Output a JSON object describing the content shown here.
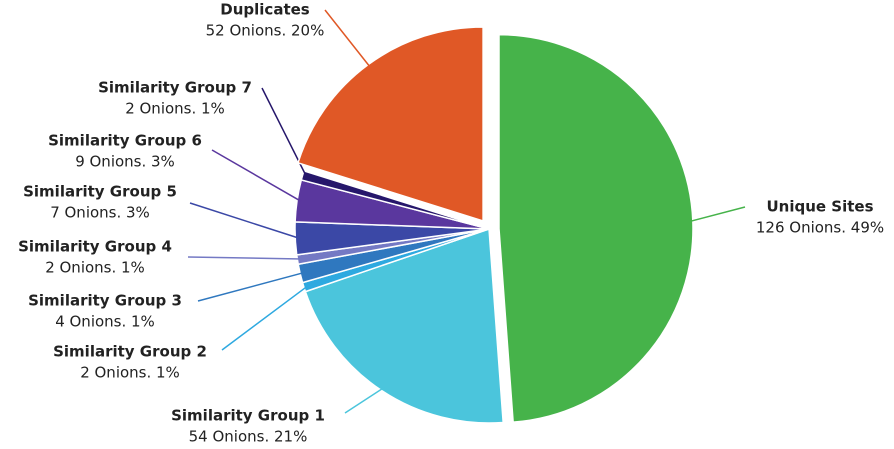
{
  "chart_data": {
    "type": "pie",
    "categories": [
      "Unique Sites",
      "Similarity Group 1",
      "Similarity Group 2",
      "Similarity Group 3",
      "Similarity Group 4",
      "Similarity Group 5",
      "Similarity Group 6",
      "Similarity Group 7",
      "Duplicates"
    ],
    "values": [
      126,
      54,
      2,
      4,
      2,
      7,
      9,
      2,
      52
    ],
    "value_labels": [
      "126 Onions. 49%",
      "54 Onions. 21%",
      "2 Onions. 1%",
      "4 Onions. 1%",
      "2 Onions. 1%",
      "7 Onions. 3%",
      "9 Onions. 3%",
      "2 Onions. 1%",
      "52 Onions. 20%"
    ],
    "colors": [
      "#46b34a",
      "#4bc5dc",
      "#2ea9e0",
      "#2f78bf",
      "#7479c4",
      "#3b48a6",
      "#5a379e",
      "#26176b",
      "#e05826"
    ]
  }
}
